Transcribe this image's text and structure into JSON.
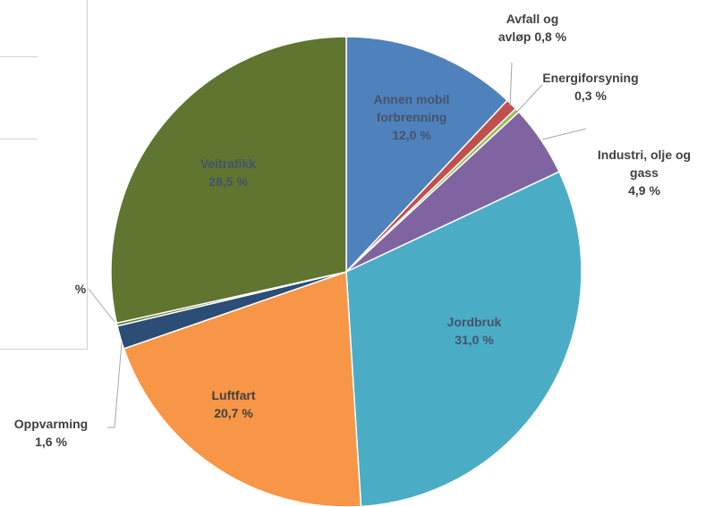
{
  "chart_data": {
    "type": "pie",
    "title": "",
    "slices": [
      {
        "label": "Annen mobil forbrenning",
        "display_lines": [
          "Annen mobil",
          "forbrenning"
        ],
        "value_text": "12,0 %",
        "value": 12.0,
        "color": "#4f81bd",
        "label_inside": true,
        "label_color": "#44546a"
      },
      {
        "label": "Avfall og avløp",
        "display_lines": [
          "Avfall og",
          "avløp 0,8 %"
        ],
        "value_text": "",
        "value": 0.8,
        "color": "#c0504d",
        "label_inside": false,
        "label_color": "#404040"
      },
      {
        "label": "Energiforsyning",
        "display_lines": [
          "Energiforsyning"
        ],
        "value_text": "0,3 %",
        "value": 0.3,
        "color": "#9bbb59",
        "label_inside": false,
        "label_color": "#404040"
      },
      {
        "label": "Industri, olje og gass",
        "display_lines": [
          "Industri, olje og",
          "gass"
        ],
        "value_text": "4,9 %",
        "value": 4.9,
        "color": "#8064a2",
        "label_inside": false,
        "label_color": "#404040"
      },
      {
        "label": "Jordbruk",
        "display_lines": [
          "Jordbruk"
        ],
        "value_text": "31,0 %",
        "value": 31.0,
        "color": "#4bacc6",
        "label_inside": true,
        "label_color": "#44546a"
      },
      {
        "label": "Luftfart",
        "display_lines": [
          "Luftfart"
        ],
        "value_text": "20,7 %",
        "value": 20.7,
        "color": "#f79646",
        "label_inside": true,
        "label_color": "#404040"
      },
      {
        "label": "Oppvarming",
        "display_lines": [
          "Oppvarming"
        ],
        "value_text": "1,6 %",
        "value": 1.6,
        "color": "#2c4d75",
        "label_inside": false,
        "label_color": "#404040"
      },
      {
        "label": "",
        "display_lines": [
          "%"
        ],
        "value_text": "",
        "value": 0.2,
        "color": "#5f7530",
        "label_inside": false,
        "label_color": "#404040"
      },
      {
        "label": "Veitrafikk",
        "display_lines": [
          "Veitrafikk"
        ],
        "value_text": "28,5 %",
        "value": 28.5,
        "color": "#5f7530",
        "label_inside": true,
        "label_color": "#44546a"
      }
    ]
  }
}
